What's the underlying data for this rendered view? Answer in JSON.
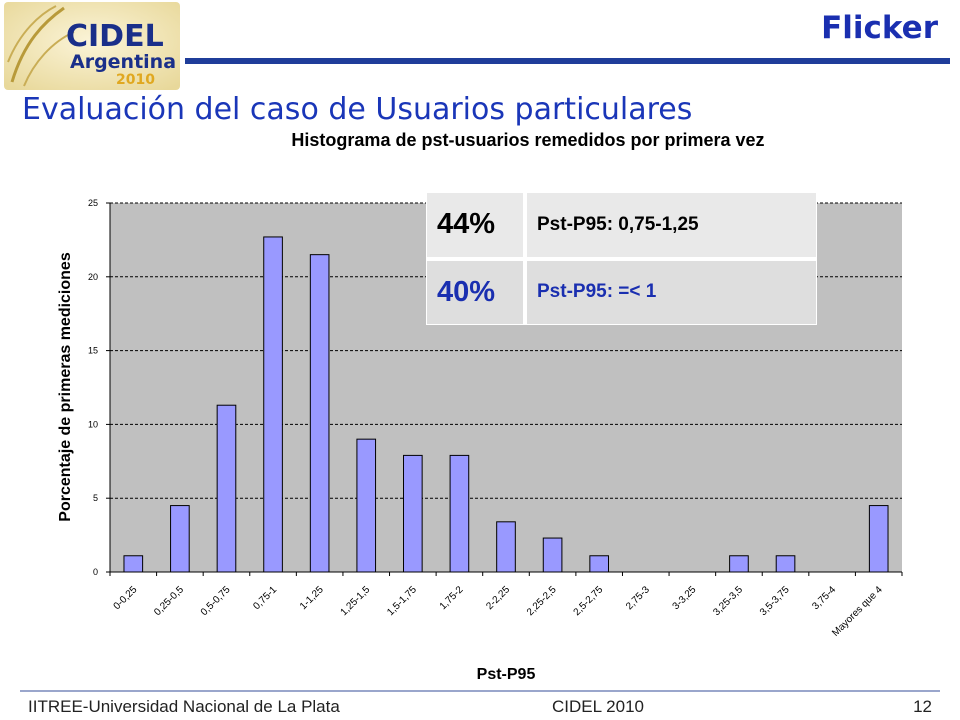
{
  "header": {
    "logo_line1": "CIDEL",
    "logo_line2": "Argentina",
    "logo_line3": "2010",
    "slide_title": "Flicker",
    "subtitle": "Evaluación del caso de Usuarios particulares"
  },
  "info_table": {
    "rows": [
      {
        "percent": "44%",
        "label": "Pst-P95: 0,75-1,25"
      },
      {
        "percent": "40%",
        "label": "Pst-P95: =< 1"
      }
    ]
  },
  "footer": {
    "left": "IITREE-Universidad Nacional de La Plata",
    "center": "CIDEL 2010",
    "page": "12"
  },
  "colors": {
    "bar_fill": "#9999ff",
    "title_blue": "#1a2fb0",
    "header_line": "#1f3d9a"
  },
  "chart_data": {
    "type": "bar",
    "title": "Histograma de pst-usuarios remedidos por primera vez",
    "xlabel": "Pst-P95",
    "ylabel": "Porcentaje de primeras mediciones",
    "ylim": [
      0,
      25
    ],
    "yticks": [
      0,
      5,
      10,
      15,
      20,
      25
    ],
    "grid": true,
    "categories": [
      "0-0,25",
      "0,25-0,5",
      "0,5-0,75",
      "0,75-1",
      "1-1,25",
      "1,25-1,5",
      "1,5-1,75",
      "1,75-2",
      "2-2,25",
      "2,25-2,5",
      "2,5-2,75",
      "2,75-3",
      "3-3,25",
      "3,25-3,5",
      "3,5-3,75",
      "3,75-4",
      "Mayores que 4"
    ],
    "values": [
      1.1,
      4.5,
      11.3,
      22.7,
      21.5,
      9.0,
      7.9,
      7.9,
      3.4,
      2.3,
      1.1,
      0,
      0,
      1.1,
      1.1,
      0,
      4.5
    ]
  }
}
